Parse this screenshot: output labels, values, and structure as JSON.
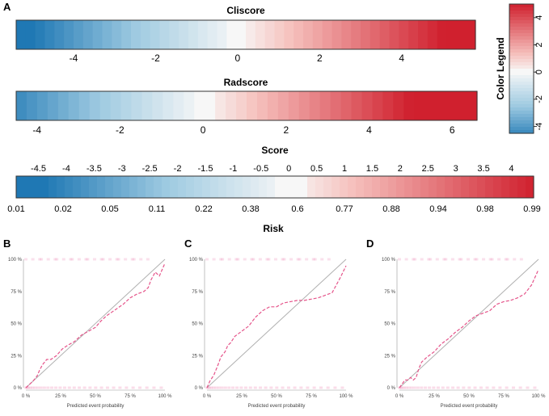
{
  "panel_labels": [
    "A",
    "B",
    "C",
    "D"
  ],
  "palette": {
    "blue": "#1f78b4",
    "mid_blue": "#9ecae1",
    "white": "#f7f7f7",
    "light_red": "#f6c3bf",
    "red": "#d0202e",
    "calib_line": "#e5548a",
    "calib_points": "#f2a7c8",
    "ideal_line": "#b0b0b0"
  },
  "chart_data": [
    {
      "id": "cliscore",
      "type": "heatmap",
      "title": "Cliscore",
      "xlim": [
        -5.4,
        5.8
      ],
      "color_range": [
        -5.0,
        5.0
      ],
      "ticks": [
        -4,
        -2,
        0,
        2,
        4
      ],
      "tick_labels": [
        "-4",
        "-2",
        "0",
        "2",
        "4"
      ]
    },
    {
      "id": "radscore",
      "type": "heatmap",
      "title": "Radscore",
      "xlim": [
        -4.5,
        6.6
      ],
      "color_range": [
        -5.0,
        5.0
      ],
      "ticks": [
        -4,
        -2,
        0,
        2,
        4,
        6
      ],
      "tick_labels": [
        "-4",
        "-2",
        "0",
        "2",
        "4",
        "6"
      ]
    },
    {
      "id": "score",
      "type": "heatmap",
      "title": "Score",
      "xlabel": "Risk",
      "xlim": [
        -4.9,
        4.4
      ],
      "color_range": [
        -4.4,
        4.4
      ],
      "top_ticks": [
        -4.5,
        -4,
        -3.5,
        -3,
        -2.5,
        -2,
        -1.5,
        -1,
        -0.5,
        0,
        0.5,
        1,
        1.5,
        2,
        2.5,
        3,
        3.5,
        4
      ],
      "top_tick_labels": [
        "-4.5",
        "-4",
        "-3.5",
        "-3",
        "-2.5",
        "-2",
        "-1.5",
        "-1",
        "-0.5",
        "0",
        "0.5",
        "1",
        "1.5",
        "2",
        "2.5",
        "3",
        "3.5",
        "4"
      ],
      "risk_values": [
        "0.01",
        "0.02",
        "0.05",
        "0.11",
        "0.22",
        "0.38",
        "0.6",
        "0.77",
        "0.88",
        "0.94",
        "0.98",
        "0.99"
      ]
    },
    {
      "id": "color-legend",
      "type": "heatmap",
      "title": "Color Legend",
      "ylim": [
        -4.5,
        5.0
      ],
      "ticks": [
        -4,
        -2,
        0,
        2,
        4
      ],
      "tick_labels": [
        "-4",
        "-2",
        "0",
        "2",
        "4"
      ]
    },
    {
      "id": "calib-b",
      "panel": "B",
      "type": "line",
      "xlabel": "Predicted event probability",
      "xlim": [
        0,
        1
      ],
      "ylim": [
        0,
        1
      ],
      "tick_labels": [
        "0 %",
        "25 %",
        "50 %",
        "75 %",
        "100 %"
      ],
      "series": [
        {
          "name": "ideal",
          "x": [
            0,
            1
          ],
          "y": [
            0,
            1
          ]
        },
        {
          "name": "calibration",
          "x": [
            0.0,
            0.02,
            0.05,
            0.08,
            0.1,
            0.12,
            0.15,
            0.18,
            0.22,
            0.26,
            0.3,
            0.35,
            0.4,
            0.45,
            0.5,
            0.54,
            0.58,
            0.62,
            0.66,
            0.7,
            0.75,
            0.8,
            0.85,
            0.88,
            0.9,
            0.93,
            0.96,
            0.98,
            1.0
          ],
          "y": [
            0.0,
            0.02,
            0.05,
            0.09,
            0.14,
            0.18,
            0.22,
            0.22,
            0.25,
            0.3,
            0.33,
            0.36,
            0.41,
            0.44,
            0.47,
            0.52,
            0.56,
            0.59,
            0.62,
            0.65,
            0.7,
            0.73,
            0.75,
            0.78,
            0.84,
            0.9,
            0.87,
            0.92,
            0.97
          ]
        }
      ]
    },
    {
      "id": "calib-c",
      "panel": "C",
      "type": "line",
      "xlabel": "Predicted event probability",
      "xlim": [
        0,
        1
      ],
      "ylim": [
        0,
        1
      ],
      "tick_labels": [
        "0 %",
        "25 %",
        "50 %",
        "75 %",
        "100 %"
      ],
      "series": [
        {
          "name": "ideal",
          "x": [
            0,
            1
          ],
          "y": [
            0,
            1
          ]
        },
        {
          "name": "calibration",
          "x": [
            0.0,
            0.02,
            0.05,
            0.08,
            0.1,
            0.13,
            0.15,
            0.17,
            0.2,
            0.25,
            0.3,
            0.35,
            0.4,
            0.45,
            0.5,
            0.55,
            0.6,
            0.65,
            0.7,
            0.75,
            0.8,
            0.85,
            0.9,
            0.93,
            0.96,
            1.0
          ],
          "y": [
            0.0,
            0.05,
            0.1,
            0.18,
            0.24,
            0.28,
            0.33,
            0.35,
            0.4,
            0.44,
            0.48,
            0.55,
            0.6,
            0.63,
            0.63,
            0.66,
            0.67,
            0.68,
            0.68,
            0.69,
            0.7,
            0.72,
            0.74,
            0.8,
            0.86,
            0.95
          ]
        }
      ]
    },
    {
      "id": "calib-d",
      "panel": "D",
      "type": "line",
      "xlabel": "Predicted event probability",
      "xlim": [
        0,
        1
      ],
      "ylim": [
        0,
        1
      ],
      "tick_labels": [
        "0 %",
        "25 %",
        "50 %",
        "75 %",
        "100 %"
      ],
      "series": [
        {
          "name": "ideal",
          "x": [
            0,
            1
          ],
          "y": [
            0,
            1
          ]
        },
        {
          "name": "calibration",
          "x": [
            0.0,
            0.02,
            0.04,
            0.06,
            0.08,
            0.1,
            0.12,
            0.14,
            0.16,
            0.2,
            0.25,
            0.3,
            0.35,
            0.4,
            0.45,
            0.5,
            0.55,
            0.6,
            0.65,
            0.7,
            0.75,
            0.8,
            0.85,
            0.9,
            0.95,
            1.0
          ],
          "y": [
            0.0,
            0.03,
            0.06,
            0.06,
            0.08,
            0.06,
            0.08,
            0.15,
            0.2,
            0.24,
            0.28,
            0.34,
            0.38,
            0.43,
            0.47,
            0.52,
            0.56,
            0.58,
            0.6,
            0.65,
            0.67,
            0.68,
            0.7,
            0.73,
            0.8,
            0.92
          ]
        }
      ]
    }
  ]
}
